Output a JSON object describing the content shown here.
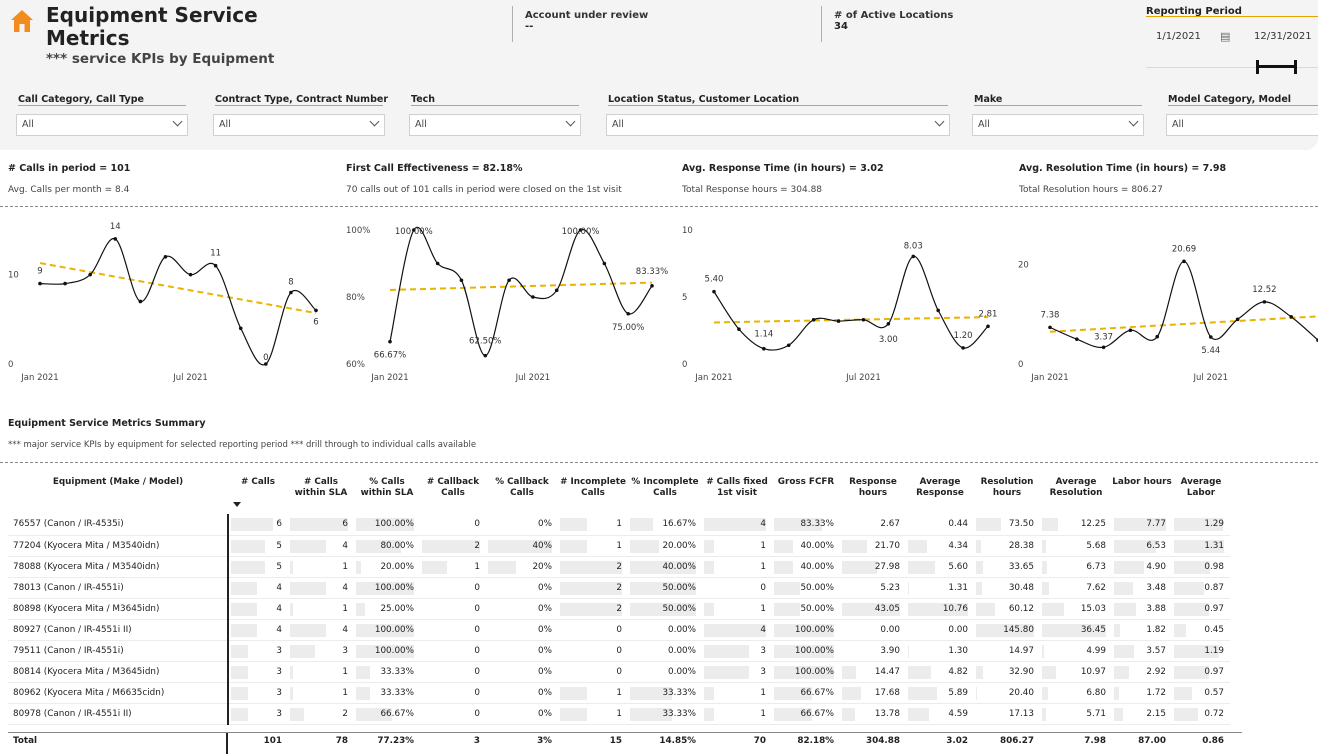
{
  "header": {
    "title": "Equipment Service Metrics",
    "subtitle": "*** service KPIs by Equipment",
    "account_label": "Account under review",
    "account_value": "--",
    "locations_label": "# of Active Locations",
    "locations_value": "34",
    "period_label": "Reporting Period",
    "start_date": "1/1/2021",
    "end_date": "12/31/2021",
    "icon": "home-icon",
    "accent_color": "#e8a400",
    "home_color": "#f28c1f"
  },
  "filters": [
    {
      "label": "Call Category, Call Type",
      "value": "All"
    },
    {
      "label": "Contract Type, Contract Number",
      "value": "All"
    },
    {
      "label": "Tech",
      "value": "All"
    },
    {
      "label": "Location Status, Customer Location",
      "value": "All"
    },
    {
      "label": "Make",
      "value": "All"
    },
    {
      "label": "Model Category, Model",
      "value": "All"
    }
  ],
  "kpis": [
    {
      "title": "# Calls in period = 101",
      "sub": "Avg. Calls per month = 8.4"
    },
    {
      "title": "First Call Effectiveness = 82.18%",
      "sub": "70 calls out of 101 calls in period were closed on the 1st visit"
    },
    {
      "title": "Avg. Response Time (in hours) = 3.02",
      "sub": "Total Response hours = 304.88"
    },
    {
      "title": "Avg. Resolution Time (in hours) = 7.98",
      "sub": "Total Resolution hours = 806.27"
    }
  ],
  "chart_data": [
    {
      "type": "line",
      "x": [
        "Jan 2021",
        "Feb 2021",
        "Mar 2021",
        "Apr 2021",
        "May 2021",
        "Jun 2021",
        "Jul 2021",
        "Aug 2021",
        "Sep 2021",
        "Oct 2021",
        "Nov 2021",
        "Dec 2021"
      ],
      "x_tick_labels": [
        "Jan 2021",
        "Jul 2021"
      ],
      "values": [
        9,
        9,
        10,
        14,
        7,
        12,
        10,
        11,
        4,
        0,
        8,
        6
      ],
      "data_labels": {
        "0": "9",
        "3": "14",
        "7": "11",
        "9": "0",
        "10": "8",
        "11": "6"
      },
      "y_ticks": [
        "0",
        "10"
      ],
      "ylim": [
        0,
        15
      ],
      "trend": [
        11.3,
        5.7
      ],
      "trend_color": "#e8b400"
    },
    {
      "type": "line",
      "x": [
        "Jan 2021",
        "Feb 2021",
        "Mar 2021",
        "Apr 2021",
        "May 2021",
        "Jun 2021",
        "Jul 2021",
        "Aug 2021",
        "Sep 2021",
        "Oct 2021",
        "Nov 2021",
        "Dec 2021"
      ],
      "x_tick_labels": [
        "Jan 2021",
        "Jul 2021"
      ],
      "values": [
        66.67,
        100.0,
        90.0,
        85.0,
        62.5,
        85.0,
        80.0,
        82.0,
        100.0,
        90.0,
        75.0,
        83.33
      ],
      "data_labels": {
        "0": "66.67%",
        "1": "100.00%",
        "4": "62.50%",
        "8": "100.00%",
        "10": "75.00%",
        "11": "83.33%"
      },
      "y_ticks": [
        "60%",
        "80%",
        "100%"
      ],
      "ylim": [
        60,
        100
      ],
      "trend": [
        82.1,
        84.3
      ],
      "trend_color": "#e8b400"
    },
    {
      "type": "line",
      "x": [
        "Jan 2021",
        "Feb 2021",
        "Mar 2021",
        "Apr 2021",
        "May 2021",
        "Jun 2021",
        "Jul 2021",
        "Aug 2021",
        "Sep 2021",
        "Oct 2021",
        "Nov 2021",
        "Dec 2021"
      ],
      "x_tick_labels": [
        "Jan 2021",
        "Jul 2021"
      ],
      "values": [
        5.4,
        2.6,
        1.14,
        1.4,
        3.3,
        3.2,
        3.3,
        3.0,
        8.03,
        4.0,
        1.2,
        2.81
      ],
      "data_labels": {
        "0": "5.40",
        "2": "1.14",
        "7": "3.00",
        "8": "8.03",
        "10": "1.20",
        "11": "2.81"
      },
      "y_ticks": [
        "0",
        "5",
        "10"
      ],
      "ylim": [
        0,
        10
      ],
      "trend": [
        3.1,
        3.5
      ],
      "trend_color": "#e8b400"
    },
    {
      "type": "line",
      "x": [
        "Jan 2021",
        "Feb 2021",
        "Mar 2021",
        "Apr 2021",
        "May 2021",
        "Jun 2021",
        "Jul 2021",
        "Aug 2021",
        "Sep 2021",
        "Oct 2021",
        "Nov 2021"
      ],
      "x_tick_labels": [
        "Jan 2021",
        "Jul 2021"
      ],
      "values": [
        7.38,
        5.0,
        3.37,
        6.8,
        5.5,
        20.69,
        5.44,
        9.0,
        12.52,
        9.5,
        4.8
      ],
      "data_labels": {
        "0": "7.38",
        "2": "3.37",
        "5": "20.69",
        "6": "5.44",
        "8": "12.52"
      },
      "y_ticks": [
        "0",
        "20"
      ],
      "ylim": [
        0,
        27
      ],
      "trend": [
        6.5,
        9.6
      ],
      "trend_color": "#e8b400"
    }
  ],
  "summary": {
    "title": "Equipment Service Metrics Summary",
    "subtitle": "*** major service KPIs by equipment for selected reporting period *** drill through to individual calls available"
  },
  "table": {
    "columns": [
      "Equipment (Make / Model)",
      "# Calls",
      "# Calls within SLA",
      "% Calls within SLA",
      "# Callback Calls",
      "% Callback Calls",
      "# Incomplete Calls",
      "% Incomplete Calls",
      "# Calls fixed 1st visit",
      "Gross FCFR",
      "Response hours",
      "Average Response",
      "Resolution hours",
      "Average Resolution",
      "Labor hours",
      "Average Labor"
    ],
    "rows": [
      [
        "76557 (Canon / IR-4535i)",
        "6",
        "6",
        "100.00%",
        "0",
        "0%",
        "1",
        "16.67%",
        "4",
        "83.33%",
        "2.67",
        "0.44",
        "73.50",
        "12.25",
        "7.77",
        "1.29"
      ],
      [
        "77204 (Kyocera Mita / M3540idn)",
        "5",
        "4",
        "80.00%",
        "2",
        "40%",
        "1",
        "20.00%",
        "1",
        "40.00%",
        "21.70",
        "4.34",
        "28.38",
        "5.68",
        "6.53",
        "1.31"
      ],
      [
        "78088 (Kyocera Mita / M3540idn)",
        "5",
        "1",
        "20.00%",
        "1",
        "20%",
        "2",
        "40.00%",
        "1",
        "40.00%",
        "27.98",
        "5.60",
        "33.65",
        "6.73",
        "4.90",
        "0.98"
      ],
      [
        "78013 (Canon / IR-4551i)",
        "4",
        "4",
        "100.00%",
        "0",
        "0%",
        "2",
        "50.00%",
        "0",
        "50.00%",
        "5.23",
        "1.31",
        "30.48",
        "7.62",
        "3.48",
        "0.87"
      ],
      [
        "80898 (Kyocera Mita / M3645idn)",
        "4",
        "1",
        "25.00%",
        "0",
        "0%",
        "2",
        "50.00%",
        "1",
        "50.00%",
        "43.05",
        "10.76",
        "60.12",
        "15.03",
        "3.88",
        "0.97"
      ],
      [
        "80927 (Canon / IR-4551i II)",
        "4",
        "4",
        "100.00%",
        "0",
        "0%",
        "0",
        "0.00%",
        "4",
        "100.00%",
        "0.00",
        "0.00",
        "145.80",
        "36.45",
        "1.82",
        "0.45"
      ],
      [
        "79511 (Canon / IR-4551i)",
        "3",
        "3",
        "100.00%",
        "0",
        "0%",
        "0",
        "0.00%",
        "3",
        "100.00%",
        "3.90",
        "1.30",
        "14.97",
        "4.99",
        "3.57",
        "1.19"
      ],
      [
        "80814 (Kyocera Mita / M3645idn)",
        "3",
        "1",
        "33.33%",
        "0",
        "0%",
        "0",
        "0.00%",
        "3",
        "100.00%",
        "14.47",
        "4.82",
        "32.90",
        "10.97",
        "2.92",
        "0.97"
      ],
      [
        "80962 (Kyocera Mita / M6635cidn)",
        "3",
        "1",
        "33.33%",
        "0",
        "0%",
        "1",
        "33.33%",
        "1",
        "66.67%",
        "17.68",
        "5.89",
        "20.40",
        "6.80",
        "1.72",
        "0.57"
      ],
      [
        "80978 (Canon / IR-4551i II)",
        "3",
        "2",
        "66.67%",
        "0",
        "0%",
        "1",
        "33.33%",
        "1",
        "66.67%",
        "13.78",
        "4.59",
        "17.13",
        "5.71",
        "2.15",
        "0.72"
      ]
    ],
    "bar_fractions": [
      [
        0.85,
        1.0,
        1.0,
        0.0,
        0.0,
        0.5,
        0.42,
        1.0,
        0.83,
        0.06,
        0.04,
        0.5,
        0.34,
        1.0,
        0.98
      ],
      [
        0.72,
        0.67,
        0.8,
        1.0,
        1.0,
        0.5,
        0.5,
        0.25,
        0.4,
        0.5,
        0.4,
        0.19,
        0.16,
        0.84,
        1.0
      ],
      [
        0.72,
        0.17,
        0.2,
        0.5,
        0.5,
        1.0,
        1.0,
        0.25,
        0.4,
        0.65,
        0.52,
        0.23,
        0.18,
        0.63,
        0.75
      ],
      [
        0.57,
        0.67,
        1.0,
        0.0,
        0.0,
        1.0,
        1.0,
        0.0,
        0.5,
        0.12,
        0.12,
        0.21,
        0.21,
        0.45,
        0.66
      ],
      [
        0.57,
        0.17,
        0.25,
        0.0,
        0.0,
        1.0,
        1.0,
        0.25,
        0.5,
        1.0,
        1.0,
        0.41,
        0.41,
        0.5,
        0.74
      ],
      [
        0.57,
        0.67,
        1.0,
        0.0,
        0.0,
        0.0,
        0.0,
        1.0,
        1.0,
        0.0,
        0.0,
        1.0,
        1.0,
        0.23,
        0.34
      ],
      [
        0.43,
        0.5,
        1.0,
        0.0,
        0.0,
        0.0,
        0.0,
        0.75,
        1.0,
        0.09,
        0.12,
        0.1,
        0.14,
        0.46,
        0.91
      ],
      [
        0.43,
        0.17,
        0.33,
        0.0,
        0.0,
        0.0,
        0.0,
        0.75,
        1.0,
        0.34,
        0.45,
        0.23,
        0.3,
        0.38,
        0.74
      ],
      [
        0.43,
        0.17,
        0.33,
        0.0,
        0.0,
        0.5,
        0.67,
        0.25,
        0.67,
        0.41,
        0.55,
        0.14,
        0.19,
        0.22,
        0.44
      ],
      [
        0.43,
        0.33,
        0.67,
        0.0,
        0.0,
        0.5,
        0.67,
        0.25,
        0.67,
        0.32,
        0.43,
        0.12,
        0.16,
        0.28,
        0.55
      ]
    ],
    "total": [
      "Total",
      "101",
      "78",
      "77.23%",
      "3",
      "3%",
      "15",
      "14.85%",
      "70",
      "82.18%",
      "304.88",
      "3.02",
      "806.27",
      "7.98",
      "87.00",
      "0.86"
    ]
  }
}
